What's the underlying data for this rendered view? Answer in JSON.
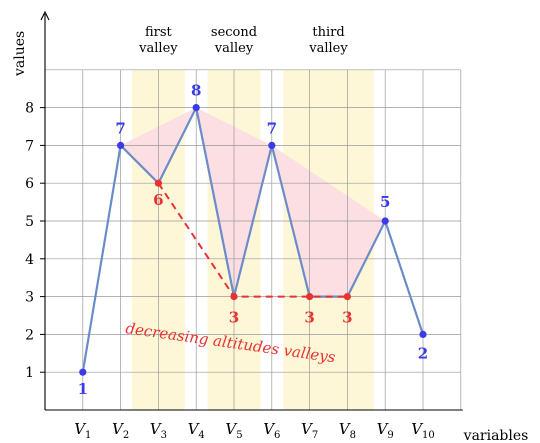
{
  "chart_data": {
    "type": "line",
    "ylabel": "values",
    "xlabel": "variables",
    "categories": [
      "V1",
      "V2",
      "V3",
      "V4",
      "V5",
      "V6",
      "V7",
      "V8",
      "V9",
      "V10"
    ],
    "category_labels": [
      {
        "base": "V",
        "sub": "1"
      },
      {
        "base": "V",
        "sub": "2"
      },
      {
        "base": "V",
        "sub": "3"
      },
      {
        "base": "V",
        "sub": "4"
      },
      {
        "base": "V",
        "sub": "5"
      },
      {
        "base": "V",
        "sub": "6"
      },
      {
        "base": "V",
        "sub": "7"
      },
      {
        "base": "V",
        "sub": "8"
      },
      {
        "base": "V",
        "sub": "9"
      },
      {
        "base": "V",
        "sub": "10"
      }
    ],
    "values": [
      1,
      7,
      6,
      8,
      3,
      7,
      3,
      3,
      5,
      2
    ],
    "point_labels": [
      "1",
      "7",
      "6",
      "8",
      "3",
      "7",
      "3",
      "3",
      "5",
      "2"
    ],
    "ylim": [
      0,
      9
    ],
    "yticks": [
      1,
      2,
      3,
      4,
      5,
      6,
      7,
      8
    ],
    "grid": true,
    "valleys": [
      {
        "label_line1": "first",
        "label_line2": "valley",
        "from": 1.8,
        "to": 3.2
      },
      {
        "label_line1": "second",
        "label_line2": "valley",
        "from": 3.8,
        "to": 5.2
      },
      {
        "label_line1": "third",
        "label_line2": "valley",
        "from": 5.8,
        "to": 8.2
      }
    ],
    "valley_shading": [
      [
        [
          2,
          7
        ],
        [
          3,
          6
        ],
        [
          4,
          8
        ]
      ],
      [
        [
          4,
          8
        ],
        [
          5,
          3
        ],
        [
          6,
          7
        ]
      ],
      [
        [
          6,
          7
        ],
        [
          7,
          3
        ],
        [
          8,
          3
        ],
        [
          9,
          5
        ]
      ]
    ],
    "decreasing_path": [
      [
        3,
        6
      ],
      [
        5,
        3
      ],
      [
        8,
        3
      ]
    ],
    "annotation": "decreasing altitudes valleys",
    "colors": {
      "line": "#6b8cc8",
      "point_blue": "#3a3ae8",
      "point_red": "#e83232",
      "valley_band": "#fdf7d8",
      "shade": "#fbdfe3",
      "grid": "#9a9a9a",
      "dashed": "#e83232"
    },
    "red_points": [
      2,
      4,
      6,
      7
    ]
  }
}
